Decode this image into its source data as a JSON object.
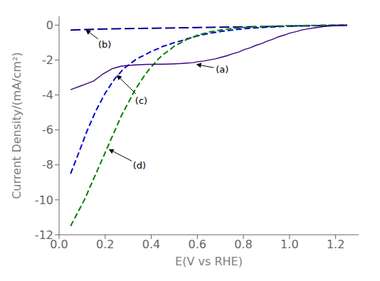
{
  "chart_data": {
    "type": "line",
    "xlabel": "E(V vs RHE)",
    "ylabel": "Current Density/(mA/cm²)",
    "xlim": [
      0.0,
      1.3
    ],
    "ylim": [
      -12,
      0.5
    ],
    "xticks": [
      {
        "value": 0.0,
        "label": "0.0"
      },
      0.2,
      0.4,
      0.6,
      0.8,
      {
        "value": 1.0,
        "label": "1.0"
      },
      1.2
    ],
    "yticks": [
      0,
      -2,
      -4,
      -6,
      -8,
      -10,
      -12
    ],
    "grid": false,
    "series": [
      {
        "color": "#000090",
        "line_style": "long_dashed",
        "x": [
          0.05,
          0.1,
          0.15,
          0.2,
          0.25,
          0.3,
          0.35,
          0.4,
          0.45,
          0.5,
          0.55,
          0.6,
          0.65,
          0.7,
          0.75,
          0.8,
          0.85,
          0.9,
          0.95,
          1.0,
          1.05,
          1.1,
          1.15,
          1.2,
          1.25
        ],
        "values": [
          -0.28,
          -0.26,
          -0.24,
          -0.22,
          -0.21,
          -0.2,
          -0.19,
          -0.18,
          -0.17,
          -0.16,
          -0.15,
          -0.14,
          -0.13,
          -0.12,
          -0.11,
          -0.1,
          -0.09,
          -0.08,
          -0.07,
          -0.06,
          -0.05,
          -0.04,
          -0.03,
          -0.02,
          -0.01
        ]
      },
      {
        "color": "#0000CC",
        "line_style": "dashed",
        "x": [
          0.05,
          0.08,
          0.1,
          0.12,
          0.14,
          0.16,
          0.18,
          0.2,
          0.22,
          0.24,
          0.26,
          0.28,
          0.3,
          0.33,
          0.35,
          0.38,
          0.4,
          0.43,
          0.45,
          0.48,
          0.5,
          0.53,
          0.55,
          0.58,
          0.6,
          0.65,
          0.7,
          0.75,
          0.8,
          0.85,
          0.9,
          0.95,
          1.0,
          1.05,
          1.1,
          1.15,
          1.2,
          1.25
        ],
        "values": [
          -8.5,
          -7.5,
          -6.8,
          -6.1,
          -5.5,
          -4.9,
          -4.4,
          -3.9,
          -3.5,
          -3.1,
          -2.8,
          -2.5,
          -2.3,
          -2.0,
          -1.85,
          -1.65,
          -1.5,
          -1.35,
          -1.22,
          -1.1,
          -1.0,
          -0.9,
          -0.8,
          -0.7,
          -0.62,
          -0.48,
          -0.37,
          -0.28,
          -0.21,
          -0.16,
          -0.12,
          -0.09,
          -0.06,
          -0.04,
          -0.03,
          -0.02,
          -0.01,
          -0.005
        ]
      },
      {
        "color": "#008000",
        "line_style": "dashed",
        "x": [
          0.05,
          0.07,
          0.09,
          0.11,
          0.13,
          0.15,
          0.17,
          0.19,
          0.21,
          0.23,
          0.25,
          0.27,
          0.29,
          0.31,
          0.33,
          0.35,
          0.37,
          0.39,
          0.41,
          0.43,
          0.45,
          0.48,
          0.5,
          0.53,
          0.55,
          0.58,
          0.6,
          0.65,
          0.7,
          0.75,
          0.8,
          0.85,
          0.9,
          0.95,
          1.0,
          1.05,
          1.1,
          1.15,
          1.2,
          1.25
        ],
        "values": [
          -11.5,
          -11.0,
          -10.5,
          -10.0,
          -9.4,
          -8.8,
          -8.2,
          -7.6,
          -7.0,
          -6.4,
          -5.8,
          -5.2,
          -4.7,
          -4.2,
          -3.7,
          -3.3,
          -2.9,
          -2.55,
          -2.25,
          -1.95,
          -1.7,
          -1.42,
          -1.2,
          -1.0,
          -0.85,
          -0.7,
          -0.58,
          -0.4,
          -0.28,
          -0.19,
          -0.14,
          -0.1,
          -0.07,
          -0.05,
          -0.04,
          -0.03,
          -0.02,
          -0.01,
          -0.008,
          -0.004
        ]
      },
      {
        "color": "#3B0080",
        "line_style": "solid",
        "x": [
          0.05,
          0.07,
          0.09,
          0.11,
          0.13,
          0.15,
          0.17,
          0.19,
          0.21,
          0.23,
          0.25,
          0.27,
          0.29,
          0.31,
          0.33,
          0.35,
          0.38,
          0.4,
          0.43,
          0.45,
          0.48,
          0.5,
          0.53,
          0.55,
          0.58,
          0.6,
          0.63,
          0.65,
          0.68,
          0.7,
          0.73,
          0.75,
          0.78,
          0.8,
          0.83,
          0.85,
          0.88,
          0.9,
          0.93,
          0.95,
          0.98,
          1.0,
          1.03,
          1.05,
          1.08,
          1.1,
          1.13,
          1.15,
          1.18,
          1.2,
          1.23,
          1.25
        ],
        "values": [
          -3.7,
          -3.6,
          -3.5,
          -3.4,
          -3.3,
          -3.2,
          -3.0,
          -2.8,
          -2.65,
          -2.5,
          -2.42,
          -2.35,
          -2.32,
          -2.3,
          -2.28,
          -2.27,
          -2.25,
          -2.25,
          -2.24,
          -2.24,
          -2.23,
          -2.22,
          -2.2,
          -2.18,
          -2.15,
          -2.1,
          -2.05,
          -2.0,
          -1.93,
          -1.85,
          -1.75,
          -1.65,
          -1.54,
          -1.42,
          -1.3,
          -1.18,
          -1.05,
          -0.93,
          -0.8,
          -0.68,
          -0.56,
          -0.46,
          -0.37,
          -0.29,
          -0.22,
          -0.17,
          -0.12,
          -0.08,
          -0.05,
          -0.03,
          -0.01,
          -0.005
        ]
      }
    ],
    "annotations": [
      {
        "text": "(a)",
        "xy": [
          0.595,
          -2.25
        ],
        "xytext": [
          0.68,
          -2.7
        ]
      },
      {
        "text": "(b)",
        "xy": [
          0.115,
          -0.26
        ],
        "xytext": [
          0.17,
          -1.3
        ]
      },
      {
        "text": "(c)",
        "xy": [
          0.25,
          -2.85
        ],
        "xytext": [
          0.33,
          -4.5
        ]
      },
      {
        "text": "(d)",
        "xy": [
          0.215,
          -7.1
        ],
        "xytext": [
          0.32,
          -8.2
        ]
      }
    ]
  }
}
